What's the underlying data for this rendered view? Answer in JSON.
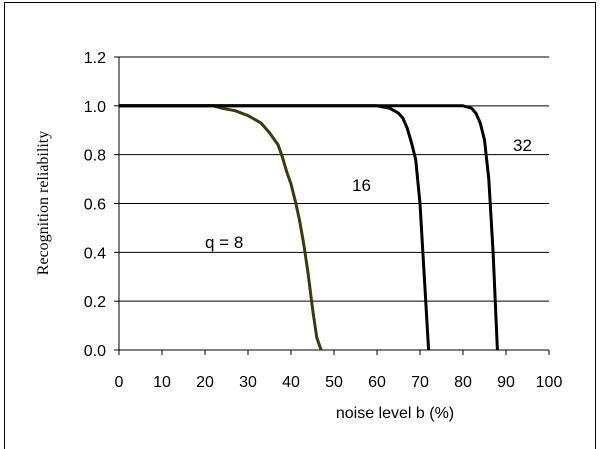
{
  "chart_data": {
    "type": "line",
    "xlabel": "noise level  b (%)",
    "ylabel": "Recognition reliability",
    "xlim": [
      0,
      100
    ],
    "ylim": [
      0,
      1.2
    ],
    "xticks": [
      "0",
      "10",
      "20",
      "30",
      "40",
      "50",
      "60",
      "70",
      "80",
      "90",
      "100"
    ],
    "yticks": [
      "0.0",
      "0.2",
      "0.4",
      "0.6",
      "0.8",
      "1.0",
      "1.2"
    ],
    "grid": "horizontal",
    "series": [
      {
        "name": "q = 8",
        "color": "#3a3a10",
        "x": [
          0,
          22,
          24,
          27,
          30,
          33,
          35,
          37,
          38,
          39,
          40,
          41,
          42,
          43,
          44,
          45,
          46,
          47
        ],
        "y": [
          1.0,
          1.0,
          0.99,
          0.98,
          0.96,
          0.93,
          0.89,
          0.84,
          0.79,
          0.73,
          0.68,
          0.61,
          0.53,
          0.43,
          0.31,
          0.17,
          0.05,
          0.0
        ]
      },
      {
        "name": "16",
        "color": "#000000",
        "x": [
          0,
          60,
          63,
          65,
          66,
          67,
          68,
          69,
          70,
          71,
          72
        ],
        "y": [
          1.0,
          1.0,
          0.99,
          0.97,
          0.95,
          0.91,
          0.85,
          0.78,
          0.6,
          0.3,
          0.0
        ]
      },
      {
        "name": "32",
        "color": "#000000",
        "x": [
          0,
          80,
          82,
          83,
          84,
          85,
          86,
          87,
          88
        ],
        "y": [
          1.0,
          1.0,
          0.99,
          0.97,
          0.93,
          0.86,
          0.7,
          0.4,
          0.0
        ]
      }
    ]
  }
}
